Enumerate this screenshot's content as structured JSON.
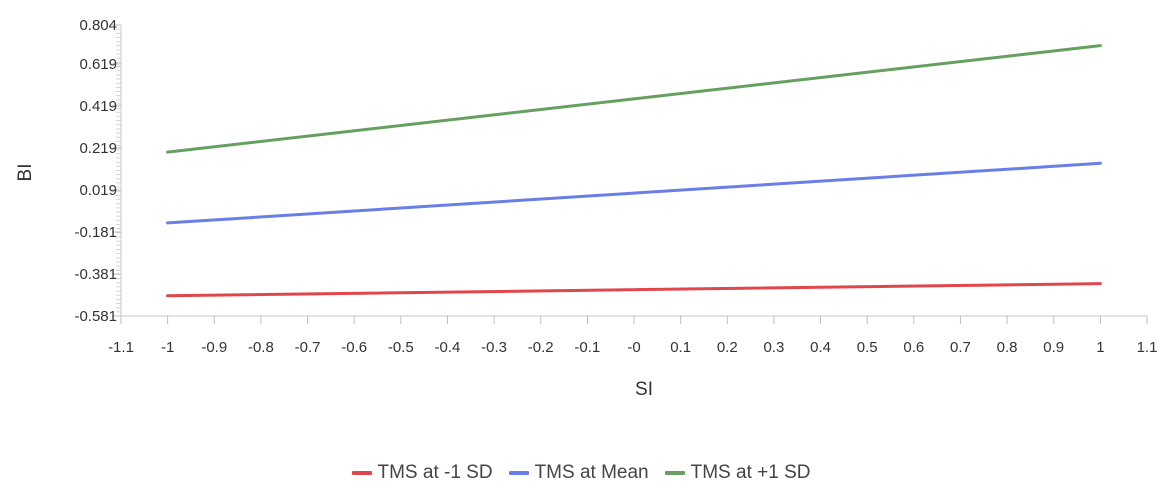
{
  "chart_data": {
    "type": "line",
    "xlabel": "SI",
    "ylabel": "BI",
    "xlim": [
      -1.1,
      1.1
    ],
    "ylim": [
      -0.581,
      0.804
    ],
    "x_ticks": [
      "-1.1",
      "-1",
      "-0.9",
      "-0.8",
      "-0.7",
      "-0.6",
      "-0.5",
      "-0.4",
      "-0.3",
      "-0.2",
      "-0.1",
      "-0",
      "0.1",
      "0.2",
      "0.3",
      "0.4",
      "0.5",
      "0.6",
      "0.7",
      "0.8",
      "0.9",
      "1",
      "1.1"
    ],
    "y_ticks": [
      "0.804",
      "0.619",
      "0.419",
      "0.219",
      "0.019",
      "-0.181",
      "-0.381",
      "-0.581"
    ],
    "grid": false,
    "legend_position": "bottom",
    "series": [
      {
        "name": "TMS at -1 SD",
        "color": "#e0474c",
        "x": [
          -1,
          1
        ],
        "y": [
          -0.485,
          -0.427
        ]
      },
      {
        "name": "TMS at Mean",
        "color": "#6a7ee8",
        "x": [
          -1,
          1
        ],
        "y": [
          -0.138,
          0.146
        ]
      },
      {
        "name": "TMS at +1 SD",
        "color": "#66a061",
        "x": [
          -1,
          1
        ],
        "y": [
          0.199,
          0.706
        ]
      }
    ]
  }
}
